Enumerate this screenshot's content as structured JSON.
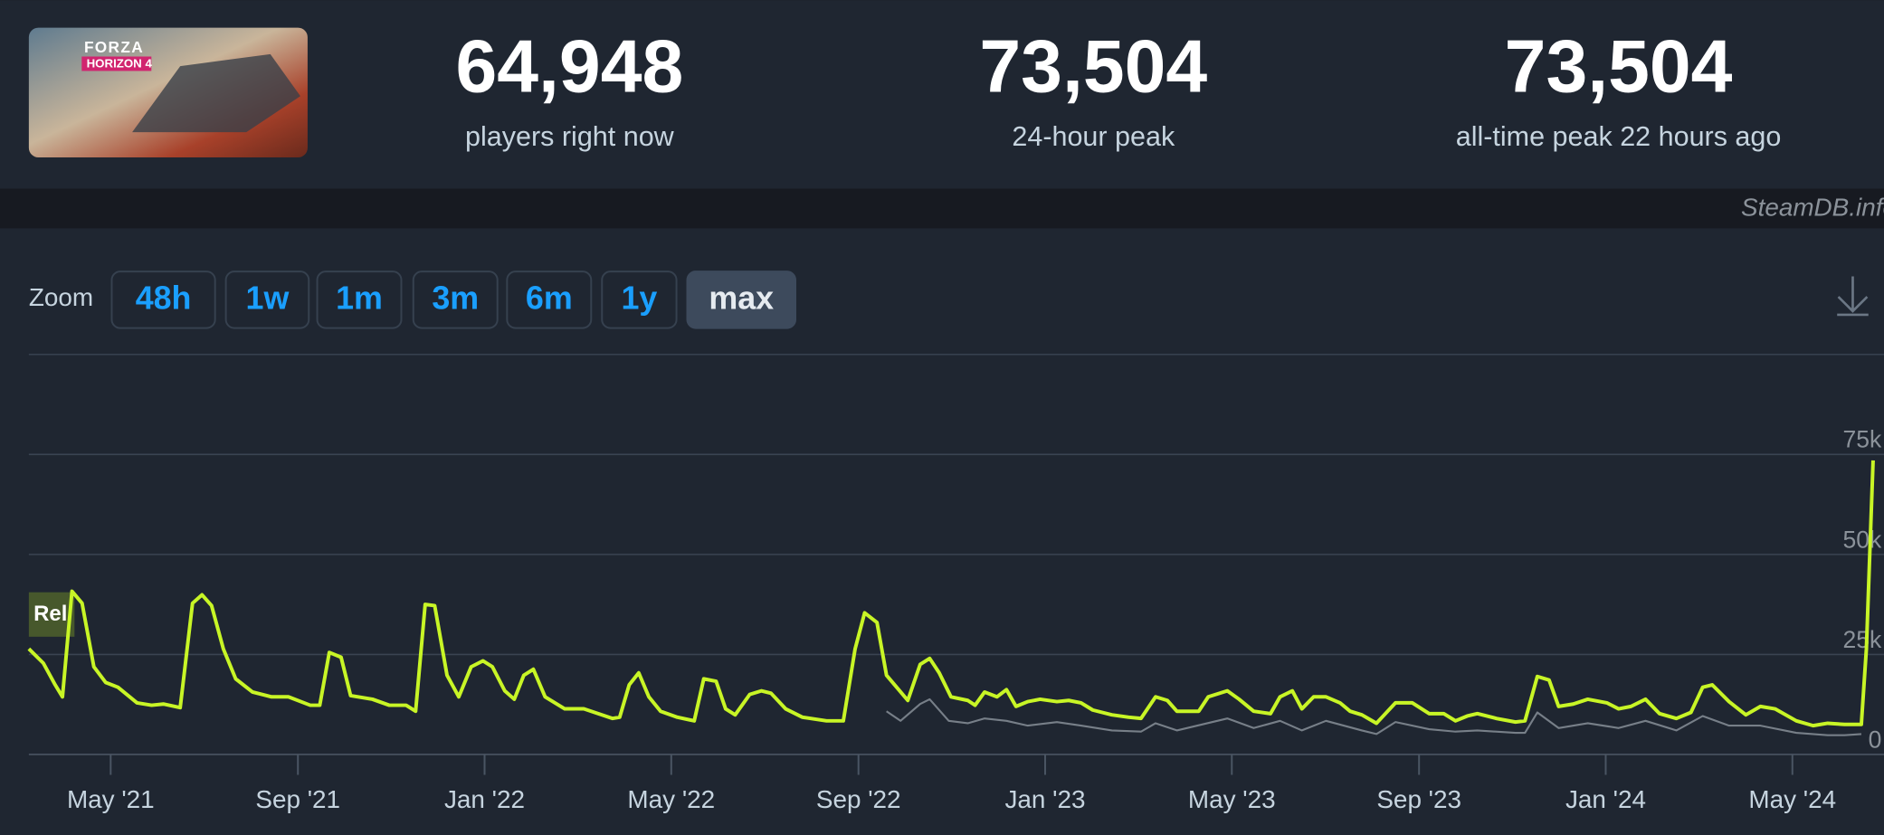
{
  "game": {
    "logo_top": "FORZA",
    "logo_bottom": "HORIZON 4"
  },
  "stats": [
    {
      "value": "64,948",
      "label": "players right now"
    },
    {
      "value": "73,504",
      "label": "24-hour peak"
    },
    {
      "value": "73,504",
      "label": "all-time peak 22 hours ago"
    }
  ],
  "watermark": "SteamDB.info",
  "zoom": {
    "label": "Zoom",
    "buttons": [
      "48h",
      "1w",
      "1m",
      "3m",
      "6m",
      "1y",
      "max"
    ],
    "active": "max"
  },
  "chart_data": {
    "type": "line",
    "annotations": [
      "Rel"
    ],
    "xlim": [
      2021.187,
      2024.49
    ],
    "xticks": [
      {
        "value": 2021.333,
        "label": "May '21"
      },
      {
        "value": 2021.667,
        "label": "Sep '21"
      },
      {
        "value": 2022.0,
        "label": "Jan '22"
      },
      {
        "value": 2022.333,
        "label": "May '22"
      },
      {
        "value": 2022.667,
        "label": "Sep '22"
      },
      {
        "value": 2023.0,
        "label": "Jan '23"
      },
      {
        "value": 2023.333,
        "label": "May '23"
      },
      {
        "value": 2023.667,
        "label": "Sep '23"
      },
      {
        "value": 2024.0,
        "label": "Jan '24"
      },
      {
        "value": 2024.333,
        "label": "May '24"
      }
    ],
    "ylim": [
      0,
      100000
    ],
    "yticks": [
      0,
      {
        "value": 25000,
        "label": "25k"
      },
      {
        "value": 50000,
        "label": "50k"
      },
      {
        "value": 75000,
        "label": "75k"
      }
    ],
    "grid": true,
    "series": [
      {
        "color": "#c8f526",
        "x": [
          2021.187,
          2021.213,
          2021.234,
          2021.247,
          2021.264,
          2021.282,
          2021.303,
          2021.324,
          2021.346,
          2021.38,
          2021.406,
          2021.427,
          2021.457,
          2021.479,
          2021.496,
          2021.513,
          2021.534,
          2021.556,
          2021.586,
          2021.62,
          2021.65,
          2021.689,
          2021.706,
          2021.723,
          2021.744,
          2021.761,
          2021.8,
          2021.83,
          2021.86,
          2021.877,
          2021.894,
          2021.911,
          2021.933,
          2021.954,
          2021.976,
          2021.997,
          2022.014,
          2022.036,
          2022.053,
          2022.07,
          2022.087,
          2022.108,
          2022.143,
          2022.177,
          2022.228,
          2022.241,
          2022.258,
          2022.275,
          2022.293,
          2022.314,
          2022.344,
          2022.374,
          2022.391,
          2022.413,
          2022.43,
          2022.447,
          2022.473,
          2022.494,
          2022.511,
          2022.537,
          2022.567,
          2022.61,
          2022.64,
          2022.661,
          2022.678,
          2022.7,
          2022.717,
          2022.755,
          2022.777,
          2022.794,
          2022.811,
          2022.832,
          2022.862,
          2022.875,
          2022.892,
          2022.914,
          2022.931,
          2022.948,
          2022.969,
          2022.991,
          2023.021,
          2023.042,
          2023.064,
          2023.085,
          2023.119,
          2023.149,
          2023.171,
          2023.197,
          2023.218,
          2023.235,
          2023.274,
          2023.291,
          2023.325,
          2023.346,
          2023.372,
          2023.402,
          2023.419,
          2023.441,
          2023.458,
          2023.479,
          2023.501,
          2023.526,
          2023.544,
          2023.565,
          2023.591,
          2023.625,
          2023.655,
          2023.685,
          2023.711,
          2023.732,
          2023.753,
          2023.771,
          2023.805,
          2023.839,
          2023.856,
          2023.878,
          2023.899,
          2023.916,
          2023.942,
          2023.968,
          2024.002,
          2024.023,
          2024.045,
          2024.071,
          2024.096,
          2024.126,
          2024.152,
          2024.173,
          2024.19,
          2024.22,
          2024.25,
          2024.276,
          2024.302,
          2024.34,
          2024.37,
          2024.396,
          2024.426,
          2024.456,
          2024.465,
          2024.477
        ],
        "values": [
          26400,
          22800,
          17400,
          14400,
          40800,
          37800,
          21900,
          18000,
          16800,
          12900,
          12300,
          12600,
          11700,
          37800,
          39900,
          37200,
          26400,
          18900,
          15600,
          14400,
          14400,
          12300,
          12300,
          25500,
          24300,
          14700,
          13800,
          12300,
          12300,
          10800,
          37500,
          37200,
          19800,
          14400,
          21900,
          23400,
          21900,
          15900,
          13800,
          19800,
          21300,
          14400,
          11400,
          11400,
          9000,
          9300,
          17400,
          20400,
          14400,
          10800,
          9300,
          8400,
          18900,
          18300,
          11400,
          9900,
          15000,
          15900,
          15300,
          11400,
          9300,
          8400,
          8400,
          26400,
          35400,
          33000,
          19800,
          13500,
          22500,
          24000,
          20400,
          14400,
          13500,
          12300,
          15600,
          14400,
          16200,
          12000,
          13200,
          13800,
          13200,
          13500,
          12900,
          11100,
          9900,
          9300,
          9000,
          14400,
          13500,
          10800,
          10800,
          14400,
          15900,
          13800,
          10800,
          10200,
          14400,
          15900,
          11400,
          14400,
          14400,
          12900,
          10800,
          9900,
          7800,
          12900,
          12900,
          10200,
          10200,
          8400,
          9600,
          10200,
          9000,
          8100,
          8400,
          19500,
          18600,
          12000,
          12600,
          13800,
          12900,
          11400,
          12000,
          13800,
          10200,
          9000,
          10500,
          16800,
          17400,
          13200,
          9900,
          12000,
          11400,
          8400,
          7200,
          7800,
          7500,
          7500,
          26400,
          73504
        ]
      },
      {
        "color": "#777f88",
        "x": [
          2022.717,
          2022.742,
          2022.777,
          2022.794,
          2022.828,
          2022.862,
          2022.892,
          2022.931,
          2022.969,
          2023.021,
          2023.064,
          2023.119,
          2023.171,
          2023.197,
          2023.235,
          2023.325,
          2023.372,
          2023.419,
          2023.458,
          2023.501,
          2023.565,
          2023.591,
          2023.625,
          2023.685,
          2023.732,
          2023.771,
          2023.839,
          2023.856,
          2023.878,
          2023.916,
          2023.968,
          2024.023,
          2024.071,
          2024.126,
          2024.173,
          2024.22,
          2024.276,
          2024.34,
          2024.396,
          2024.426,
          2024.456
        ],
        "values": [
          10800,
          8400,
          12600,
          13800,
          8400,
          7800,
          9000,
          8400,
          7200,
          8100,
          7200,
          6000,
          5700,
          7800,
          6000,
          9000,
          6600,
          8400,
          6000,
          8400,
          6000,
          5100,
          8100,
          6300,
          5700,
          6000,
          5400,
          5400,
          10500,
          6600,
          7800,
          6600,
          8400,
          6000,
          9600,
          7200,
          7200,
          5400,
          4800,
          4800,
          5100
        ]
      }
    ]
  }
}
